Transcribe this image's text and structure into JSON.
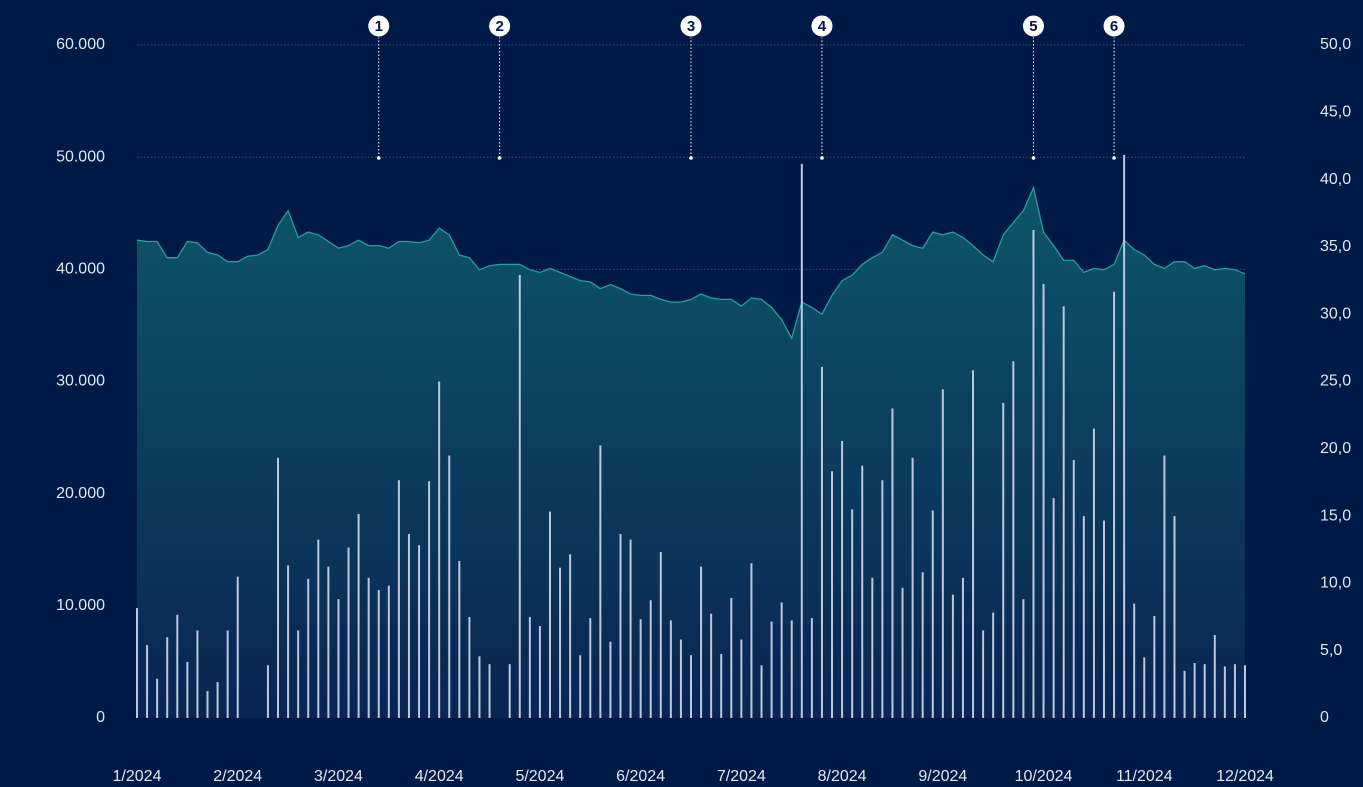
{
  "chart_data": {
    "type": "bar_area",
    "categories": [
      "1/2024",
      null,
      null,
      null,
      null,
      null,
      null,
      null,
      null,
      null,
      "2/2024",
      null,
      null,
      null,
      null,
      null,
      null,
      null,
      null,
      null,
      "3/2024",
      null,
      null,
      null,
      null,
      null,
      null,
      null,
      null,
      null,
      "4/2024",
      null,
      null,
      null,
      null,
      null,
      null,
      null,
      null,
      null,
      "5/2024",
      null,
      null,
      null,
      null,
      null,
      null,
      null,
      null,
      null,
      "6/2024",
      null,
      null,
      null,
      null,
      null,
      null,
      null,
      null,
      null,
      "7/2024",
      null,
      null,
      null,
      null,
      null,
      null,
      null,
      null,
      null,
      "8/2024",
      null,
      null,
      null,
      null,
      null,
      null,
      null,
      null,
      null,
      "9/2024",
      null,
      null,
      null,
      null,
      null,
      null,
      null,
      null,
      null,
      "10/2024",
      null,
      null,
      null,
      null,
      null,
      null,
      null,
      null,
      null,
      "11/2024",
      null,
      null,
      null,
      null,
      null,
      null,
      null,
      null,
      null,
      "12/2024"
    ],
    "series": [
      {
        "type": "bar",
        "color": "#b9c9e2",
        "values": [
          9800,
          6500,
          3500,
          7200,
          9200,
          5000,
          7800,
          2400,
          3200,
          7800,
          12600,
          0,
          0,
          4700,
          23200,
          13600,
          7800,
          12400,
          15900,
          13500,
          10600,
          15200,
          18200,
          12500,
          11400,
          11800,
          21200,
          16400,
          15400,
          21100,
          30000,
          23400,
          14000,
          9000,
          5500,
          4800,
          0,
          4800,
          39500,
          9000,
          8200,
          18400,
          13400,
          14600,
          5600,
          8900,
          24300,
          6800,
          16400,
          15900,
          8800,
          10500,
          14800,
          8700,
          7000,
          5600,
          13500,
          9300,
          5700,
          10700,
          7000,
          13800,
          4700,
          8600,
          10300,
          8700,
          49400,
          8900,
          31300,
          22000,
          24700,
          18600,
          22500,
          12500,
          21200,
          27600,
          11600,
          23200,
          13000,
          18500,
          29300,
          11000,
          12500,
          31000,
          7800,
          9400,
          28100,
          31800,
          10600,
          43500,
          38700,
          19600,
          36700,
          23000,
          18000,
          25800,
          17600,
          38000,
          50200,
          10200,
          5400,
          9100,
          23400,
          18000,
          4200,
          4900,
          4800,
          7400,
          4600,
          4800,
          4700
        ]
      },
      {
        "type": "area",
        "axis": "y2",
        "color": "#1fa39a",
        "values": [
          35.5,
          35.4,
          35.4,
          34.2,
          34.2,
          35.4,
          35.3,
          34.6,
          34.4,
          33.9,
          33.9,
          34.3,
          34.4,
          34.8,
          36.6,
          37.7,
          35.7,
          36.1,
          35.9,
          35.4,
          34.9,
          35.1,
          35.5,
          35.1,
          35.1,
          34.9,
          35.4,
          35.4,
          35.3,
          35.5,
          36.4,
          35.9,
          34.4,
          34.2,
          33.3,
          33.6,
          33.7,
          33.7,
          33.7,
          33.3,
          33.1,
          33.4,
          33.1,
          32.8,
          32.5,
          32.4,
          31.9,
          32.2,
          31.9,
          31.5,
          31.4,
          31.4,
          31.1,
          30.9,
          30.9,
          31.1,
          31.5,
          31.2,
          31.1,
          31.1,
          30.6,
          31.2,
          31.1,
          30.5,
          29.6,
          28.2,
          30.9,
          30.5,
          30.0,
          31.4,
          32.5,
          32.9,
          33.7,
          34.2,
          34.6,
          35.9,
          35.5,
          35.1,
          34.9,
          36.1,
          35.9,
          36.1,
          35.7,
          35.1,
          34.4,
          33.9,
          35.9,
          36.8,
          37.7,
          39.4,
          36.1,
          35.1,
          34.0,
          34.0,
          33.1,
          33.4,
          33.3,
          33.7,
          35.5,
          34.8,
          34.4,
          33.7,
          33.4,
          33.9,
          33.9,
          33.4,
          33.6,
          33.3,
          33.4,
          33.3,
          33.0
        ]
      }
    ],
    "ylim": [
      0,
      60000
    ],
    "yticks": [
      0,
      {
        "value": 10000,
        "label": "10.000"
      },
      {
        "value": 20000,
        "label": "20.000"
      },
      {
        "value": 30000,
        "label": "30.000"
      },
      {
        "value": 40000,
        "label": "40.000"
      },
      {
        "value": 50000,
        "label": "50.000"
      },
      {
        "value": 60000,
        "label": "60.000"
      }
    ],
    "y2lim": [
      0,
      50
    ],
    "y2ticks": [
      0,
      {
        "value": 5,
        "label": "5,0"
      },
      {
        "value": 10,
        "label": "10,0"
      },
      {
        "value": 15,
        "label": "15,0"
      },
      {
        "value": 20,
        "label": "20,0"
      },
      {
        "value": 25,
        "label": "25,0"
      },
      {
        "value": 30,
        "label": "30,0"
      },
      {
        "value": 35,
        "label": "35,0"
      },
      {
        "value": 40,
        "label": "40,0"
      },
      {
        "value": 45,
        "label": "45,0"
      },
      {
        "value": 50,
        "label": "50,0"
      }
    ],
    "grid": true,
    "annotations": [
      {
        "label": "1",
        "index": 24
      },
      {
        "label": "2",
        "index": 36
      },
      {
        "label": "3",
        "index": 55
      },
      {
        "label": "4",
        "index": 68
      },
      {
        "label": "5",
        "index": 89
      },
      {
        "label": "6",
        "index": 97
      }
    ]
  }
}
